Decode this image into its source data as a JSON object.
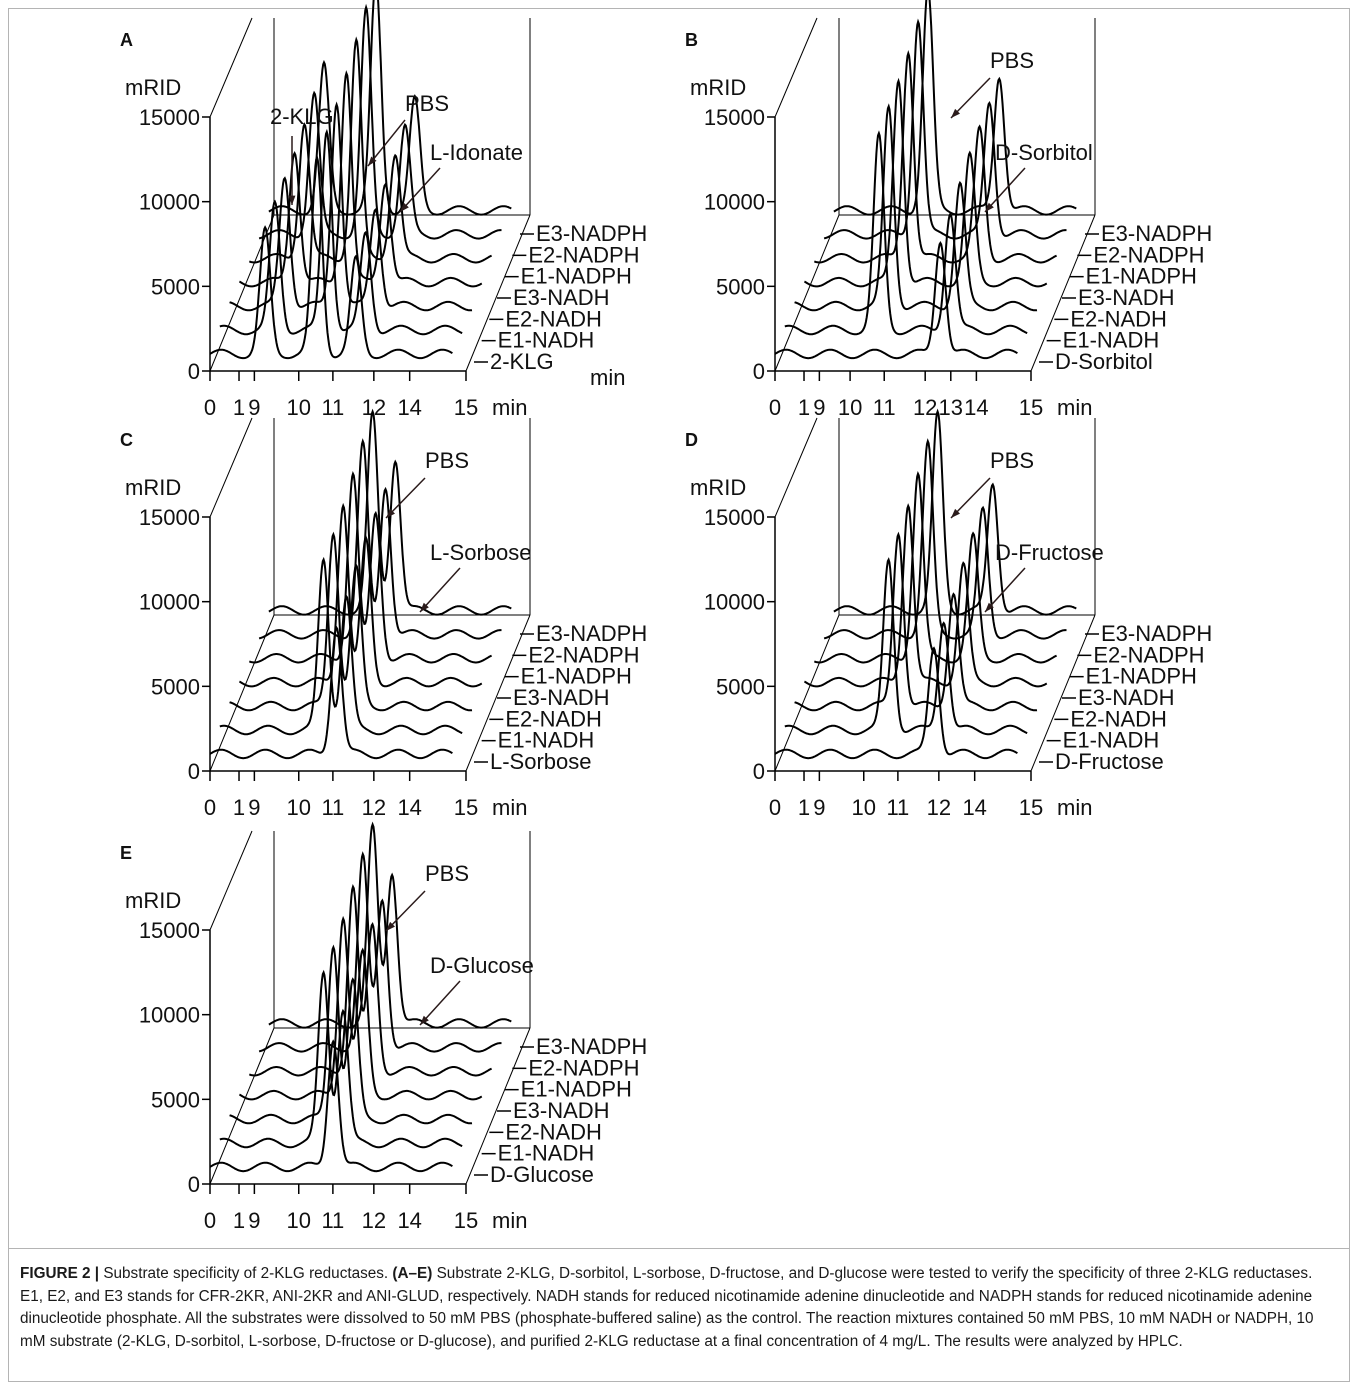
{
  "chart_data": [
    {
      "type": "line",
      "panel": "A",
      "ylabel": "mRID",
      "xlabel": "min",
      "xlabel_back": "min",
      "ylim": [
        0,
        15000
      ],
      "yticks": [
        "0",
        "5000",
        "10000",
        "15000"
      ],
      "xticks": [
        "0",
        "1",
        "9",
        "10",
        "11",
        "12",
        "14",
        "15"
      ],
      "series_labels": [
        "2-KLG",
        "E1-NADH",
        "E2-NADH",
        "E3-NADH",
        "E1-NADPH",
        "E2-NADPH",
        "E3-NADPH"
      ],
      "annotations": [
        "2-KLG",
        "PBS",
        "L-Idonate"
      ],
      "peaks": [
        {
          "label": "2-KLG",
          "x": 9.4,
          "y": 8500
        },
        {
          "label": "PBS",
          "x": 10.7,
          "y": 13500
        },
        {
          "label": "L-Idonate",
          "x": 11.9,
          "y": 6500
        }
      ]
    },
    {
      "type": "line",
      "panel": "B",
      "ylabel": "mRID",
      "xlabel": "min",
      "ylim": [
        0,
        15000
      ],
      "yticks": [
        "0",
        "5000",
        "10000",
        "15000"
      ],
      "xticks": [
        "0",
        "1",
        "9",
        "10",
        "11",
        "12",
        "13",
        "14",
        "15"
      ],
      "series_labels": [
        "D-Sorbitol",
        "E1-NADH",
        "E2-NADH",
        "E3-NADH",
        "E1-NADPH",
        "E2-NADPH",
        "E3-NADPH"
      ],
      "annotations": [
        "PBS",
        "D-Sorbitol"
      ],
      "peaks": [
        {
          "label": "PBS",
          "x": 10.7,
          "y": 13000
        },
        {
          "label": "D-Sorbitol",
          "x": 12.7,
          "y": 8000
        }
      ]
    },
    {
      "type": "line",
      "panel": "C",
      "ylabel": "mRID",
      "xlabel": "min",
      "ylim": [
        0,
        15000
      ],
      "yticks": [
        "0",
        "5000",
        "10000",
        "15000"
      ],
      "xticks": [
        "0",
        "1",
        "9",
        "10",
        "11",
        "12",
        "14",
        "15"
      ],
      "series_labels": [
        "L-Sorbose",
        "E1-NADH",
        "E2-NADH",
        "E3-NADH",
        "E1-NADPH",
        "E2-NADPH",
        "E3-NADPH"
      ],
      "annotations": [
        "PBS",
        "L-Sorbose"
      ],
      "peaks": [
        {
          "label": "PBS",
          "x": 10.6,
          "y": 11500
        },
        {
          "label": "L-Sorbose",
          "x": 11.3,
          "y": 9000
        }
      ]
    },
    {
      "type": "line",
      "panel": "D",
      "ylabel": "mRID",
      "xlabel": "min",
      "ylim": [
        0,
        15000
      ],
      "yticks": [
        "0",
        "5000",
        "10000",
        "15000"
      ],
      "xticks": [
        "0",
        "1",
        "9",
        "10",
        "11",
        "12",
        "14",
        "15"
      ],
      "series_labels": [
        "D-Fructose",
        "E1-NADH",
        "E2-NADH",
        "E3-NADH",
        "E1-NADPH",
        "E2-NADPH",
        "E3-NADPH"
      ],
      "annotations": [
        "PBS",
        "D-Fructose"
      ],
      "peaks": [
        {
          "label": "PBS",
          "x": 10.6,
          "y": 11500
        },
        {
          "label": "D-Fructose",
          "x": 12.1,
          "y": 7500
        }
      ]
    },
    {
      "type": "line",
      "panel": "E",
      "ylabel": "mRID",
      "xlabel": "min",
      "ylim": [
        0,
        15000
      ],
      "yticks": [
        "0",
        "5000",
        "10000",
        "15000"
      ],
      "xticks": [
        "0",
        "1",
        "9",
        "10",
        "11",
        "12",
        "14",
        "15"
      ],
      "series_labels": [
        "D-Glucose",
        "E1-NADH",
        "E2-NADH",
        "E3-NADH",
        "E1-NADPH",
        "E2-NADPH",
        "E3-NADPH"
      ],
      "annotations": [
        "PBS",
        "D-Glucose"
      ],
      "peaks": [
        {
          "label": "PBS",
          "x": 10.6,
          "y": 11500
        },
        {
          "label": "D-Glucose",
          "x": 11.2,
          "y": 9000
        }
      ]
    }
  ],
  "caption": {
    "lead": "FIGURE 2 |",
    "part1": " Substrate specificity of 2-KLG reductases. ",
    "bold": "(A–E)",
    "part2": " Substrate 2-KLG, D-sorbitol, L-sorbose, D-fructose, and D-glucose were tested to verify the specificity of three 2-KLG reductases. E1, E2, and E3 stands for CFR-2KR, ANI-2KR and ANI-GLUD, respectively. NADH stands for reduced nicotinamide adenine dinucleotide and NADPH stands for reduced nicotinamide adenine dinucleotide phosphate. All the substrates were dissolved to 50 mM PBS (phosphate-buffered saline) as the control. The reaction mixtures contained 50 mM PBS, 10 mM NADH or NADPH, 10 mM substrate (2-KLG, D-sorbitol, L-sorbose, D-fructose or D-glucose), and purified 2-KLG reductase at a final concentration of 4 mg/L. The results were analyzed by HPLC."
  }
}
